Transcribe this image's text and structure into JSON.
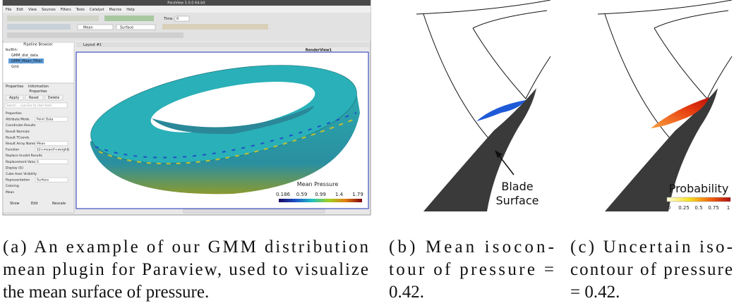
{
  "panel_a": {
    "window_title": "ParaView 5.0.0 64-bit",
    "menu": [
      "File",
      "Edit",
      "View",
      "Sources",
      "Filters",
      "Tools",
      "Catalyst",
      "Macros",
      "Help"
    ],
    "time_label": "Time:",
    "time_value": "0",
    "toolbar_fields": [
      "Mean",
      "Surface"
    ],
    "pipeline_title": "Pipeline Browser",
    "pipeline_items": [
      "builtin:",
      "GMM_dist_data",
      "GMM_Mean_Filter",
      "Grid"
    ],
    "tabs": [
      "Properties",
      "Information"
    ],
    "properties_title": "Properties",
    "buttons": [
      "Apply",
      "Reset",
      "Delete"
    ],
    "search": "Search ... (use Esc to clear text)",
    "property_rows": [
      {
        "label": "Properties",
        "value": ""
      },
      {
        "label": "Attribute Mode",
        "value": "Point Data"
      },
      {
        "label": "Coordinate Results",
        "value": ""
      },
      {
        "label": "Result Normals",
        "value": ""
      },
      {
        "label": "Result TCoords",
        "value": ""
      },
      {
        "label": "Result Array Name",
        "value": "Mean"
      },
      {
        "label": "Function",
        "value": "$2+mean(f+weight)"
      },
      {
        "label": "Replace Invalid Results",
        "value": ""
      },
      {
        "label": "Replacement Value",
        "value": "0"
      },
      {
        "label": "Display (G)",
        "value": ""
      },
      {
        "label": "Cube Axes Visibility",
        "value": ""
      },
      {
        "label": "Representation",
        "value": "Surface"
      },
      {
        "label": "Coloring",
        "value": ""
      },
      {
        "label": "Mean",
        "value": ""
      }
    ],
    "bottom_buttons": [
      "Show",
      "Edit",
      "Rescale"
    ],
    "layout_tab": "Layout #1",
    "render_view": "RenderView1",
    "colorbar": {
      "title": "Mean Pressure",
      "ticks": [
        "0.186",
        "0.59",
        "0.99",
        "1.4",
        "1.79"
      ]
    }
  },
  "panel_b": {
    "label_lines": [
      "Blade",
      "Surface"
    ]
  },
  "panel_c": {
    "colorbar": {
      "title": "Probability",
      "ticks": [
        "0",
        "0.25",
        "0.5",
        "0.75",
        "1"
      ]
    }
  },
  "captions": [
    [
      "(a) An example of our GMM distribution",
      "mean plugin for Paraview, used to visualize",
      "the mean surface of pressure."
    ],
    [
      "(b) Mean isocon-",
      "tour of pressure =",
      "0.42."
    ],
    [
      "(c) Uncertain iso-",
      "contour of pressure",
      "= 0.42."
    ]
  ]
}
